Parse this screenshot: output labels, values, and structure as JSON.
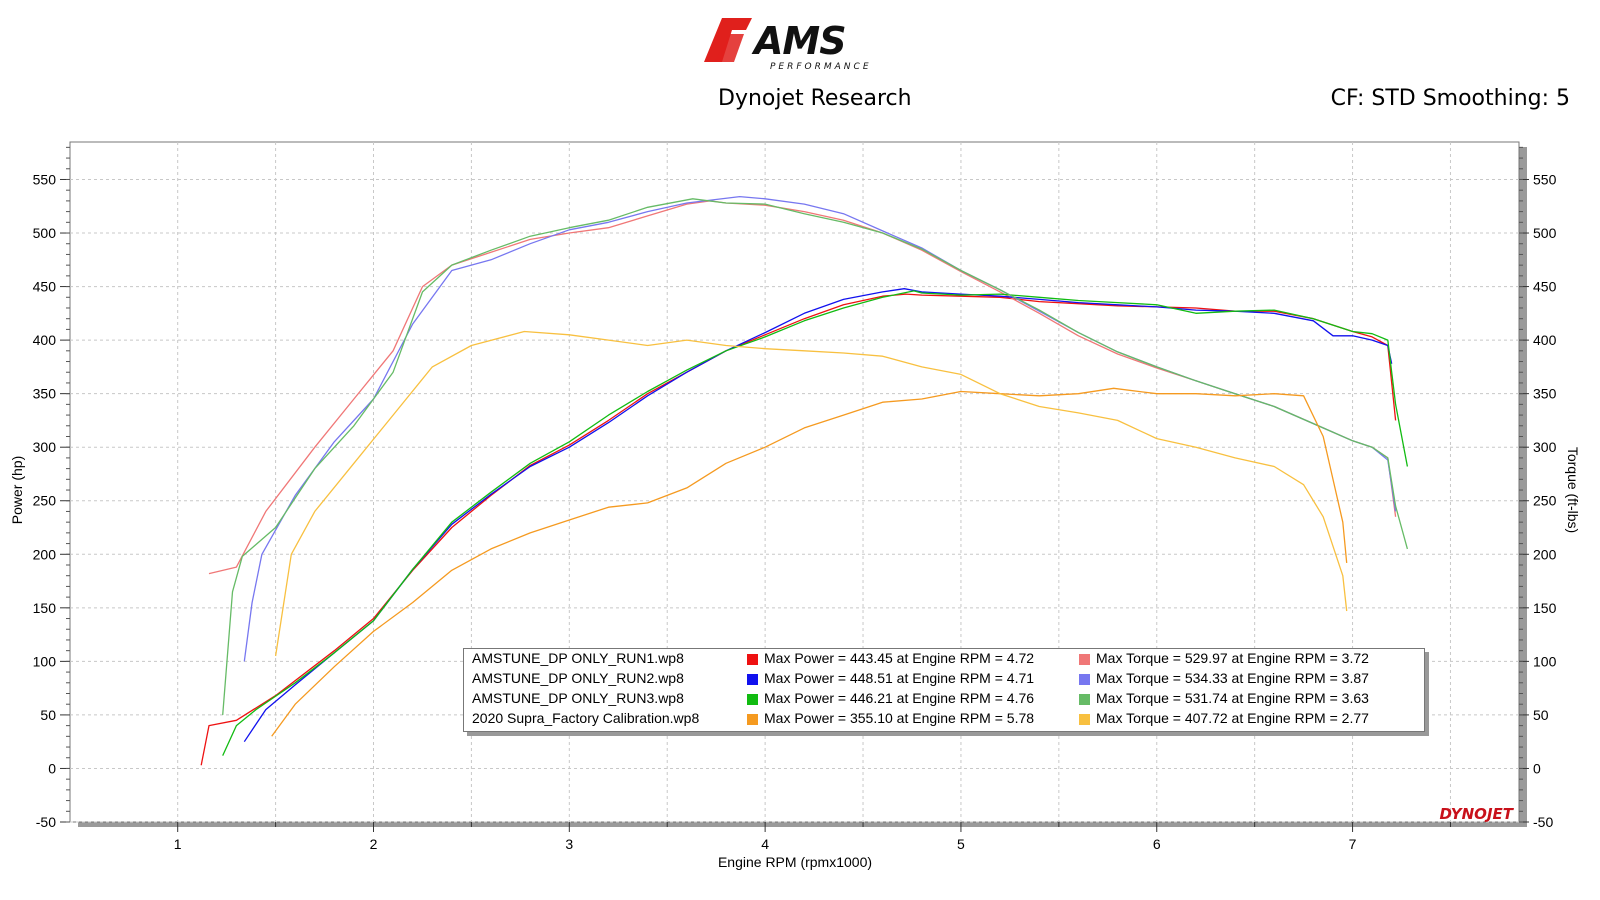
{
  "header": {
    "logo_text": "AMS",
    "logo_sub": "PERFORMANCE",
    "subtitle": "Dynojet Research",
    "settings": "CF: STD Smoothing: 5"
  },
  "watermark": "DYNOJET",
  "legend": {
    "rows": [
      {
        "file": "AMSTUNE_DP ONLY_RUN1.wp8",
        "power": "Max Power = 443.45 at Engine RPM = 4.72",
        "torque": "Max Torque = 529.97 at Engine RPM = 3.72",
        "power_color": "#ee1111",
        "torque_color": "#f07777"
      },
      {
        "file": "AMSTUNE_DP ONLY_RUN2.wp8",
        "power": "Max Power = 448.51 at Engine RPM = 4.71",
        "torque": "Max Torque = 534.33 at Engine RPM = 3.87",
        "power_color": "#1111ee",
        "torque_color": "#7777f0"
      },
      {
        "file": "AMSTUNE_DP ONLY_RUN3.wp8",
        "power": "Max Power = 446.21 at Engine RPM = 4.76",
        "torque": "Max Torque = 531.74 at Engine RPM = 3.63",
        "power_color": "#11bb11",
        "torque_color": "#66bb66"
      },
      {
        "file": "2020 Supra_Factory Calibration.wp8",
        "power": "Max Power = 355.10 at Engine RPM = 5.78",
        "torque": "Max Torque = 407.72 at Engine RPM = 2.77",
        "power_color": "#f59a20",
        "torque_color": "#f8c040"
      }
    ]
  },
  "chart_data": {
    "type": "line",
    "xlabel": "Engine RPM (rpmx1000)",
    "ylabel": "Power (hp)",
    "y2label": "Torque (ft-lbs)",
    "xlim": [
      0.45,
      7.85
    ],
    "ylim": [
      -50,
      585
    ],
    "y2lim": [
      -50,
      585
    ],
    "xticks": [
      1,
      2,
      3,
      4,
      5,
      6,
      7
    ],
    "yticks": [
      -50,
      0,
      50,
      100,
      150,
      200,
      250,
      300,
      350,
      400,
      450,
      500,
      550
    ],
    "grid": true,
    "legend_position": "bottom-center",
    "series": [
      {
        "name": "AMSTUNE_DP ONLY_RUN1.wp8",
        "measure": "power",
        "color": "#ee1111",
        "x": [
          1.12,
          1.16,
          1.3,
          1.5,
          1.8,
          2.0,
          2.2,
          2.4,
          2.6,
          2.8,
          3.0,
          3.2,
          3.4,
          3.6,
          3.8,
          4.0,
          4.2,
          4.4,
          4.6,
          4.72,
          4.8,
          5.0,
          5.2,
          5.4,
          5.6,
          5.8,
          6.0,
          6.2,
          6.4,
          6.6,
          6.8,
          7.0,
          7.1,
          7.18,
          7.22
        ],
        "y": [
          3,
          40,
          45,
          68,
          110,
          140,
          185,
          225,
          255,
          283,
          302,
          325,
          350,
          370,
          390,
          405,
          420,
          433,
          441,
          443,
          442,
          441,
          440,
          436,
          434,
          432,
          431,
          430,
          427,
          427,
          420,
          408,
          403,
          395,
          325
        ]
      },
      {
        "name": "AMSTUNE_DP ONLY_RUN1.wp8",
        "measure": "torque",
        "color": "#f07777",
        "x": [
          1.16,
          1.3,
          1.45,
          1.7,
          1.9,
          2.1,
          2.25,
          2.4,
          2.6,
          2.8,
          3.0,
          3.2,
          3.4,
          3.6,
          3.72,
          3.8,
          4.0,
          4.2,
          4.4,
          4.6,
          4.8,
          5.0,
          5.2,
          5.4,
          5.6,
          5.8,
          6.0,
          6.2,
          6.4,
          6.6,
          6.8,
          7.0,
          7.1,
          7.18,
          7.22
        ],
        "y": [
          182,
          188,
          240,
          300,
          345,
          390,
          450,
          470,
          482,
          494,
          500,
          505,
          516,
          527,
          530,
          528,
          526,
          520,
          512,
          500,
          484,
          464,
          445,
          425,
          404,
          387,
          374,
          362,
          350,
          338,
          322,
          306,
          300,
          290,
          235
        ]
      },
      {
        "name": "AMSTUNE_DP ONLY_RUN2.wp8",
        "measure": "power",
        "color": "#1111ee",
        "x": [
          1.34,
          1.45,
          1.6,
          1.8,
          2.0,
          2.2,
          2.4,
          2.6,
          2.8,
          3.0,
          3.2,
          3.4,
          3.6,
          3.8,
          4.0,
          4.2,
          4.4,
          4.6,
          4.71,
          4.8,
          5.0,
          5.2,
          5.4,
          5.6,
          5.8,
          6.0,
          6.2,
          6.4,
          6.6,
          6.8,
          6.9,
          7.0,
          7.1,
          7.18,
          7.2
        ],
        "y": [
          25,
          55,
          78,
          108,
          138,
          186,
          228,
          256,
          282,
          300,
          323,
          348,
          370,
          390,
          407,
          425,
          438,
          445,
          448,
          445,
          443,
          441,
          438,
          435,
          433,
          431,
          428,
          427,
          425,
          418,
          404,
          404,
          400,
          395,
          378
        ]
      },
      {
        "name": "AMSTUNE_DP ONLY_RUN2.wp8",
        "measure": "torque",
        "color": "#7777f0",
        "x": [
          1.34,
          1.38,
          1.43,
          1.6,
          1.8,
          2.0,
          2.2,
          2.4,
          2.6,
          2.8,
          3.0,
          3.2,
          3.4,
          3.6,
          3.87,
          4.0,
          4.2,
          4.4,
          4.6,
          4.8,
          5.0,
          5.2,
          5.4,
          5.6,
          5.8,
          6.0,
          6.2,
          6.4,
          6.6,
          6.8,
          7.0,
          7.1,
          7.18,
          7.22
        ],
        "y": [
          100,
          155,
          200,
          255,
          305,
          345,
          415,
          465,
          475,
          490,
          503,
          510,
          520,
          528,
          534,
          532,
          527,
          518,
          502,
          486,
          465,
          447,
          427,
          407,
          389,
          375,
          362,
          350,
          338,
          322,
          306,
          300,
          288,
          240
        ]
      },
      {
        "name": "AMSTUNE_DP ONLY_RUN3.wp8",
        "measure": "power",
        "color": "#11bb11",
        "x": [
          1.23,
          1.3,
          1.4,
          1.6,
          1.8,
          2.0,
          2.2,
          2.4,
          2.6,
          2.8,
          3.0,
          3.2,
          3.4,
          3.6,
          3.8,
          4.0,
          4.2,
          4.4,
          4.6,
          4.76,
          4.8,
          5.0,
          5.2,
          5.4,
          5.6,
          5.8,
          6.0,
          6.2,
          6.4,
          6.6,
          6.8,
          7.0,
          7.1,
          7.18,
          7.22,
          7.28
        ],
        "y": [
          12,
          40,
          55,
          80,
          108,
          138,
          186,
          230,
          258,
          285,
          305,
          330,
          352,
          372,
          390,
          403,
          418,
          430,
          440,
          446,
          444,
          442,
          443,
          440,
          437,
          435,
          433,
          425,
          427,
          428,
          420,
          408,
          406,
          400,
          340,
          282
        ]
      },
      {
        "name": "AMSTUNE_DP ONLY_RUN3.wp8",
        "measure": "torque",
        "color": "#66bb66",
        "x": [
          1.23,
          1.28,
          1.33,
          1.5,
          1.7,
          1.9,
          2.1,
          2.25,
          2.4,
          2.6,
          2.8,
          3.0,
          3.2,
          3.4,
          3.63,
          3.8,
          4.0,
          4.2,
          4.4,
          4.6,
          4.8,
          5.0,
          5.2,
          5.4,
          5.6,
          5.8,
          6.0,
          6.2,
          6.4,
          6.6,
          6.8,
          7.0,
          7.1,
          7.18,
          7.22,
          7.28
        ],
        "y": [
          50,
          165,
          198,
          225,
          280,
          320,
          370,
          445,
          470,
          484,
          497,
          505,
          512,
          524,
          532,
          528,
          527,
          518,
          510,
          500,
          485,
          465,
          447,
          428,
          407,
          389,
          375,
          362,
          350,
          338,
          322,
          306,
          300,
          290,
          245,
          205
        ]
      },
      {
        "name": "2020 Supra_Factory Calibration.wp8",
        "measure": "power",
        "color": "#f59a20",
        "x": [
          1.48,
          1.6,
          1.8,
          2.0,
          2.2,
          2.4,
          2.6,
          2.8,
          3.0,
          3.2,
          3.4,
          3.6,
          3.8,
          4.0,
          4.2,
          4.4,
          4.6,
          4.8,
          5.0,
          5.2,
          5.4,
          5.6,
          5.78,
          6.0,
          6.2,
          6.4,
          6.6,
          6.75,
          6.85,
          6.95,
          6.97
        ],
        "y": [
          30,
          60,
          95,
          128,
          155,
          185,
          205,
          220,
          232,
          244,
          248,
          262,
          285,
          300,
          318,
          330,
          342,
          345,
          352,
          350,
          348,
          350,
          355,
          350,
          350,
          348,
          350,
          348,
          310,
          230,
          192
        ]
      },
      {
        "name": "2020 Supra_Factory Calibration.wp8",
        "measure": "torque",
        "color": "#f8c040",
        "x": [
          1.5,
          1.58,
          1.7,
          1.9,
          2.1,
          2.3,
          2.5,
          2.77,
          3.0,
          3.2,
          3.4,
          3.6,
          3.8,
          4.0,
          4.2,
          4.4,
          4.6,
          4.8,
          5.0,
          5.2,
          5.4,
          5.6,
          5.8,
          6.0,
          6.2,
          6.4,
          6.6,
          6.75,
          6.85,
          6.95,
          6.97
        ],
        "y": [
          105,
          200,
          240,
          285,
          330,
          375,
          395,
          408,
          405,
          400,
          395,
          400,
          395,
          392,
          390,
          388,
          385,
          375,
          368,
          350,
          338,
          332,
          325,
          308,
          300,
          290,
          282,
          265,
          235,
          180,
          147
        ]
      }
    ]
  }
}
